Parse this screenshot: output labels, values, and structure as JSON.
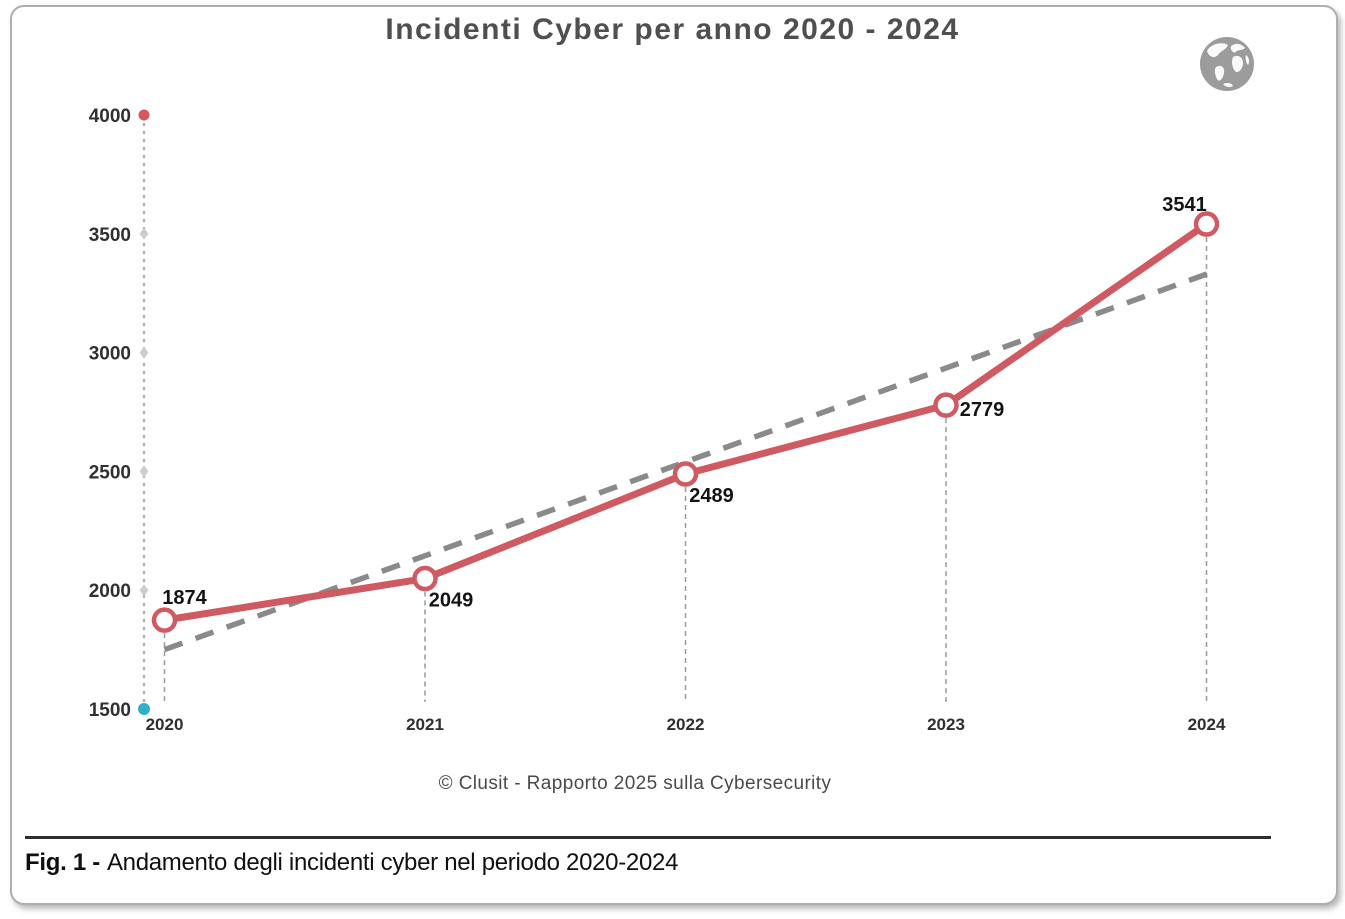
{
  "page": {
    "title": "Incidenti Cyber per anno 2020 - 2024",
    "source_caption": "© Clusit - Rapporto 2025 sulla Cybersecurity",
    "fig_label": "Fig. 1 -",
    "fig_text": "Andamento degli incidenti cyber nel periodo 2020-2024",
    "globe_icon": "globe-icon"
  },
  "chart_data": {
    "type": "line",
    "title": "Incidenti Cyber per anno 2020 - 2024",
    "categories": [
      "2020",
      "2021",
      "2022",
      "2023",
      "2024"
    ],
    "series": [
      {
        "name": "Incidenti cyber per anno",
        "values": [
          1874,
          2049,
          2489,
          2779,
          3541
        ],
        "data_labels": [
          "1874",
          "2049",
          "2489",
          "2779",
          "3541"
        ],
        "color": "#cf5a62",
        "marker": "open-circle",
        "label_offsets": [
          [
            20,
            -16
          ],
          [
            26,
            28
          ],
          [
            26,
            28
          ],
          [
            36,
            11
          ],
          [
            -22,
            -13
          ]
        ]
      }
    ],
    "trendline": {
      "style": "dashed",
      "color": "#8a8a8a",
      "from": {
        "year": 2020,
        "value": 1750
      },
      "to": {
        "year": 2024.05,
        "value": 3350
      }
    },
    "y_axis": {
      "min": 1500,
      "max": 4000,
      "step": 500,
      "tick_labels": [
        "1500",
        "2000",
        "2500",
        "3000",
        "3500",
        "4000"
      ],
      "style": "dashed-line-with-diamond-ticks",
      "line_color": "#ababab",
      "diamond_color": "#cdcdcd",
      "top_dot_color": "#d9565f",
      "bottom_dot_color": "#2fb0c3"
    },
    "x_axis": {
      "labels": [
        "2020",
        "2021",
        "2022",
        "2023",
        "2024"
      ],
      "drop_lines": "dashed",
      "drop_line_color": "#9f9f9f"
    },
    "grid": false,
    "legend": "none"
  }
}
